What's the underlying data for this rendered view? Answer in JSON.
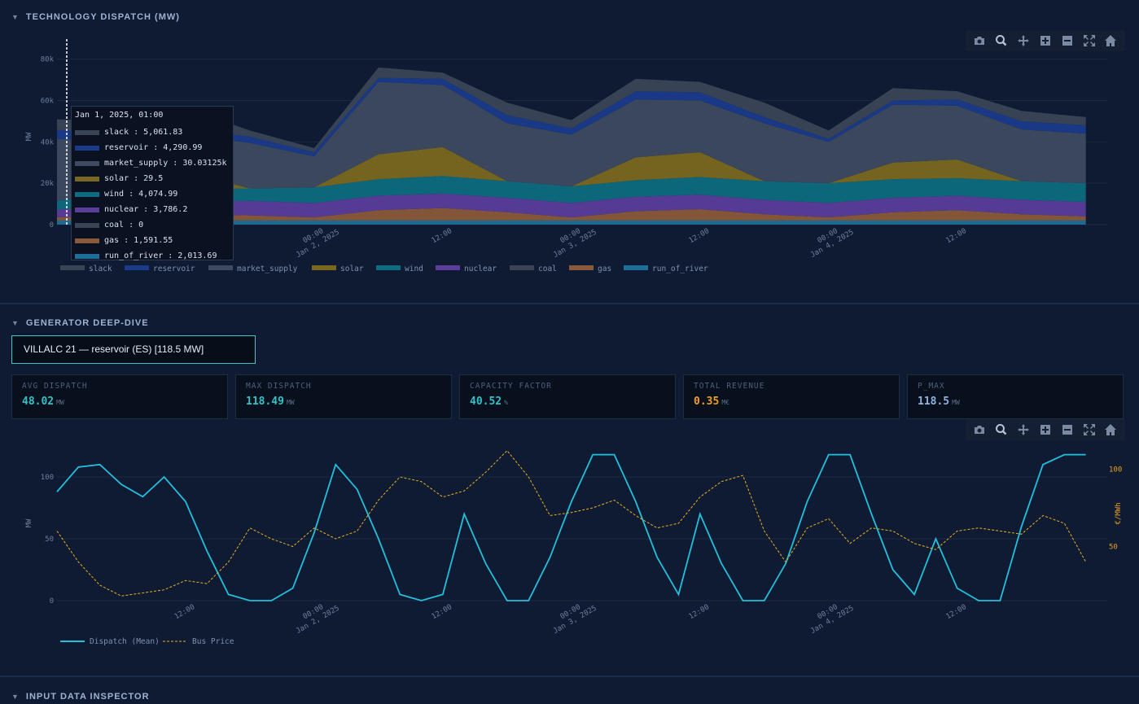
{
  "sections": {
    "dispatch_title": "TECHNOLOGY DISPATCH (MW)",
    "deep_dive_title": "GENERATOR DEEP-DIVE",
    "inspector_title": "INPUT DATA INSPECTOR"
  },
  "modebar_icons": [
    "camera-icon",
    "zoom-icon",
    "pan-icon",
    "zoom-in-icon",
    "zoom-out-icon",
    "autoscale-icon",
    "reset-axes-icon"
  ],
  "tooltip": {
    "title": "Jan 1, 2025, 01:00",
    "rows": [
      {
        "label": "slack : 5,061.83",
        "color": "#3a4457"
      },
      {
        "label": "reservoir : 4,290.99",
        "color": "#1a3a8a"
      },
      {
        "label": "market_supply : 30.03125k",
        "color": "#3e4a60"
      },
      {
        "label": "solar : 29.5",
        "color": "#7a6820"
      },
      {
        "label": "wind : 4,074.99",
        "color": "#0e6b80"
      },
      {
        "label": "nuclear : 3,786.2",
        "color": "#5b3d9a"
      },
      {
        "label": "coal : 0",
        "color": "#3b4356"
      },
      {
        "label": "gas : 1,591.55",
        "color": "#8a5a3a"
      },
      {
        "label": "run_of_river : 2,013.69",
        "color": "#1d6f9a"
      }
    ]
  },
  "generator_select": "VILLALC 21 — reservoir (ES) [118.5 MW]",
  "kpis": [
    {
      "label": "AVG DISPATCH",
      "value": "48.02",
      "unit": "MW",
      "color": "#2ec4c7"
    },
    {
      "label": "MAX DISPATCH",
      "value": "118.49",
      "unit": "MW",
      "color": "#2ec4c7"
    },
    {
      "label": "CAPACITY FACTOR",
      "value": "40.52",
      "unit": "%",
      "color": "#2ec4c7"
    },
    {
      "label": "TOTAL REVENUE",
      "value": "0.35",
      "unit": "M€",
      "color": "#f0a020"
    },
    {
      "label": "P_MAX",
      "value": "118.5",
      "unit": "MW",
      "color": "#8fb4e0"
    }
  ],
  "chart_data": [
    {
      "type": "area",
      "title": "TECHNOLOGY DISPATCH (MW)",
      "ylabel": "MW",
      "ylim": [
        0,
        85000
      ],
      "y_ticks": [
        0,
        20000,
        40000,
        60000,
        80000
      ],
      "y_tick_labels": [
        "0",
        "20k",
        "40k",
        "60k",
        "80k"
      ],
      "x_tick_labels": [
        "12:00",
        "00:00\nJan 2, 2025",
        "12:00",
        "00:00\nJan 3, 2025",
        "12:00",
        "00:00\nJan 4, 2025",
        "12:00"
      ],
      "x_hours": [
        0,
        6,
        12,
        18,
        24,
        30,
        36,
        42,
        48,
        54,
        60,
        66,
        72,
        78,
        84,
        90,
        96
      ],
      "x_ticks_hours": [
        12,
        24,
        36,
        48,
        60,
        72,
        84
      ],
      "x_range_hours": [
        0,
        98
      ],
      "legend_position": "bottom-left",
      "series": [
        {
          "name": "run_of_river",
          "color": "#1d6f9a",
          "values": [
            2000,
            2000,
            2000,
            2000,
            2000,
            2000,
            2000,
            2000,
            2000,
            2000,
            2000,
            2000,
            2000,
            2000,
            2000,
            2000,
            2000
          ]
        },
        {
          "name": "gas",
          "color": "#8a5a3a",
          "values": [
            1600,
            2000,
            3000,
            2500,
            1500,
            5000,
            6000,
            4000,
            1500,
            4500,
            5500,
            3000,
            1500,
            4000,
            5000,
            3000,
            2000
          ]
        },
        {
          "name": "coal",
          "color": "#3b4356",
          "values": [
            0,
            0,
            0,
            0,
            0,
            0,
            0,
            0,
            0,
            0,
            0,
            0,
            0,
            0,
            0,
            0,
            0
          ]
        },
        {
          "name": "nuclear",
          "color": "#5b3d9a",
          "values": [
            3800,
            5000,
            6000,
            7000,
            7000,
            7000,
            7000,
            7000,
            7000,
            7000,
            7000,
            7000,
            7000,
            7000,
            7000,
            7000,
            7000
          ]
        },
        {
          "name": "wind",
          "color": "#0e6b80",
          "values": [
            4100,
            6000,
            6500,
            6000,
            7500,
            8000,
            8500,
            8000,
            8000,
            8000,
            8500,
            9000,
            9500,
            9000,
            8500,
            9000,
            9000
          ]
        },
        {
          "name": "solar",
          "color": "#7a6820",
          "values": [
            0,
            0,
            8000,
            0,
            0,
            12000,
            14000,
            0,
            0,
            11000,
            12000,
            0,
            0,
            8000,
            9000,
            0,
            0
          ]
        },
        {
          "name": "market_supply",
          "color": "#3e4a60",
          "values": [
            30000,
            25000,
            18000,
            22000,
            15000,
            35000,
            30000,
            28000,
            25000,
            28000,
            25000,
            28000,
            20000,
            28000,
            26000,
            25000,
            24000
          ]
        },
        {
          "name": "reservoir",
          "color": "#1a3a8a",
          "values": [
            4300,
            4000,
            3000,
            3000,
            2000,
            2000,
            3000,
            4000,
            3000,
            4000,
            4000,
            3000,
            1500,
            2000,
            3000,
            4000,
            4000
          ]
        },
        {
          "name": "slack",
          "color": "#3a4457",
          "values": [
            5100,
            6000,
            10000,
            3000,
            2000,
            5000,
            3000,
            6000,
            4000,
            6000,
            5000,
            7000,
            4000,
            6000,
            4000,
            5000,
            4000
          ]
        }
      ]
    },
    {
      "type": "line",
      "ylabel": "MW",
      "y2label": "€/MWh",
      "ylim": [
        0,
        125
      ],
      "y_ticks": [
        0,
        50,
        100
      ],
      "y2lim": [
        15,
        115
      ],
      "y2_ticks": [
        50,
        100
      ],
      "x_tick_labels": [
        "12:00",
        "00:00\nJan 2, 2025",
        "12:00",
        "00:00\nJan 3, 2025",
        "12:00",
        "00:00\nJan 4, 2025",
        "12:00"
      ],
      "x_hours": [
        0,
        2,
        4,
        6,
        8,
        10,
        12,
        14,
        16,
        18,
        20,
        22,
        24,
        26,
        28,
        30,
        32,
        34,
        36,
        38,
        40,
        42,
        44,
        46,
        48,
        50,
        52,
        54,
        56,
        58,
        60,
        62,
        64,
        66,
        68,
        70,
        72,
        74,
        76,
        78,
        80,
        82,
        84,
        86,
        88,
        90,
        92,
        94,
        96
      ],
      "x_ticks_hours": [
        12,
        24,
        36,
        48,
        60,
        72,
        84
      ],
      "x_range_hours": [
        0,
        98
      ],
      "legend_position": "bottom-left",
      "series": [
        {
          "name": "Dispatch (Mean)",
          "color": "#22c0dc",
          "values": [
            88,
            108,
            110,
            94,
            84,
            100,
            80,
            40,
            5,
            0,
            0,
            10,
            55,
            110,
            90,
            50,
            5,
            0,
            5,
            70,
            30,
            0,
            0,
            35,
            80,
            118,
            118,
            80,
            35,
            5,
            70,
            30,
            0,
            0,
            30,
            80,
            118,
            118,
            70,
            25,
            5,
            50,
            10,
            0,
            0,
            60,
            110,
            118,
            118
          ]
        },
        {
          "name": "Bus Price",
          "color": "#e8b020",
          "dash": true,
          "values": [
            60,
            40,
            25,
            18,
            20,
            22,
            28,
            26,
            40,
            62,
            55,
            50,
            62,
            55,
            60,
            80,
            95,
            92,
            82,
            86,
            98,
            112,
            95,
            70,
            72,
            75,
            80,
            70,
            62,
            65,
            82,
            92,
            96,
            60,
            40,
            62,
            68,
            52,
            62,
            60,
            52,
            48,
            60,
            62,
            60,
            58,
            70,
            65,
            40
          ]
        }
      ]
    }
  ]
}
